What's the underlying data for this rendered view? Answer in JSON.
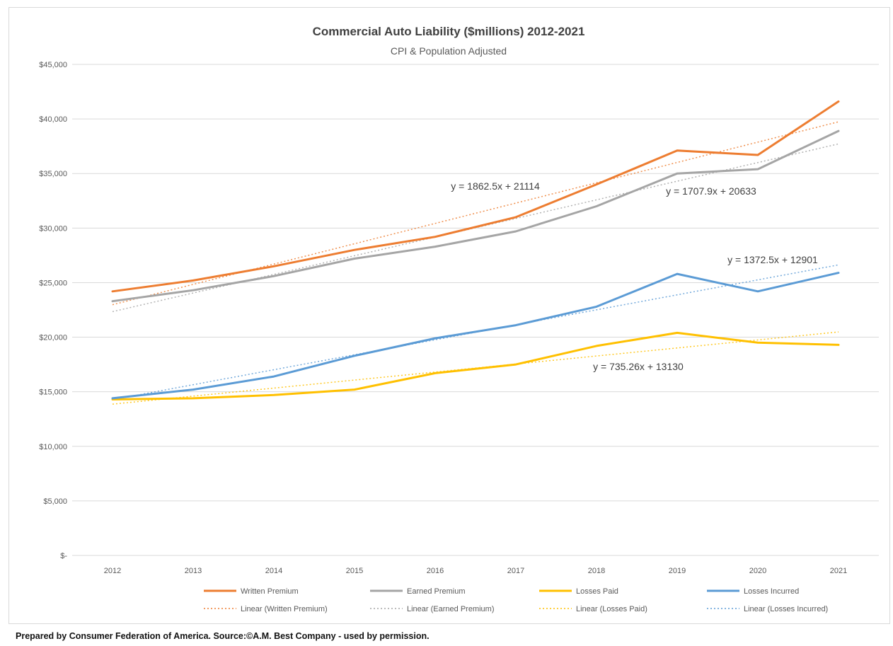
{
  "chart_data": {
    "type": "line",
    "title": "Commercial Auto Liability ($millions) 2012-2021",
    "subtitle": "CPI & Population Adjusted",
    "xlabel": "",
    "ylabel": "",
    "ylim": [
      0,
      45000
    ],
    "y_ticks": [
      "$-",
      "$5,000",
      "$10,000",
      "$15,000",
      "$20,000",
      "$25,000",
      "$30,000",
      "$35,000",
      "$40,000",
      "$45,000"
    ],
    "x": [
      "2012",
      "2013",
      "2014",
      "2015",
      "2016",
      "2017",
      "2018",
      "2019",
      "2020",
      "2021"
    ],
    "grid": true,
    "legend_position": "bottom",
    "series": [
      {
        "name": "Written Premium",
        "color": "#ed7d31",
        "values": [
          24200,
          25200,
          26500,
          28000,
          29200,
          31000,
          34000,
          37100,
          36700,
          41600
        ]
      },
      {
        "name": "Earned Premium",
        "color": "#a5a5a5",
        "values": [
          23300,
          24300,
          25600,
          27200,
          28300,
          29700,
          32000,
          35000,
          35400,
          38900
        ]
      },
      {
        "name": "Losses Paid",
        "color": "#ffc000",
        "values": [
          14300,
          14400,
          14700,
          15200,
          16700,
          17500,
          19200,
          20400,
          19500,
          19300
        ]
      },
      {
        "name": "Losses Incurred",
        "color": "#5b9bd5",
        "values": [
          14400,
          15200,
          16400,
          18300,
          19900,
          21100,
          22800,
          25800,
          24200,
          25900
        ]
      }
    ],
    "trendlines": [
      {
        "name": "Linear (Written Premium)",
        "color": "#ed7d31",
        "slope": 1862.5,
        "intercept": 21114,
        "equation": "y = 1862.5x + 21114"
      },
      {
        "name": "Linear (Earned Premium)",
        "color": "#a5a5a5",
        "slope": 1707.9,
        "intercept": 20633,
        "equation": "y = 1707.9x + 20633"
      },
      {
        "name": "Linear (Losses Paid)",
        "color": "#ffc000",
        "slope": 735.26,
        "intercept": 13130,
        "equation": "y = 735.26x + 13130"
      },
      {
        "name": "Linear (Losses Incurred)",
        "color": "#5b9bd5",
        "slope": 1372.5,
        "intercept": 12901,
        "equation": "y = 1372.5x + 12901"
      }
    ]
  },
  "footer": "Prepared by Consumer Federation of America. Source:©A.M. Best Company - used by permission."
}
